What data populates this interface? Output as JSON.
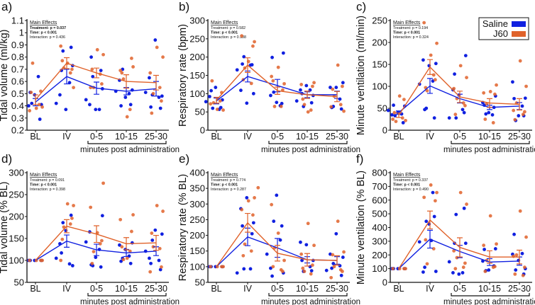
{
  "colors": {
    "Saline": "#1020e0",
    "J60": "#e0622a"
  },
  "legend": {
    "items": [
      "Saline",
      "J60"
    ],
    "placement": "top-right of panel c"
  },
  "chart_data": [
    {
      "panel": "a)",
      "type": "scatter+line",
      "ylabel": "Tidal volume (ml/kg)",
      "xlabel": "minutes post administration",
      "categories": [
        "BL",
        "IV",
        "0-5",
        "10-15",
        "25-30"
      ],
      "ylim": [
        0.2,
        1.1
      ],
      "yticks": [
        0.2,
        0.3,
        0.4,
        0.5,
        0.6,
        0.7,
        0.8,
        0.9,
        1,
        1.1
      ],
      "stats": {
        "title": "Main Effects",
        "lines": [
          {
            "text": "Treatment: p = 0.037",
            "bold": true
          },
          {
            "text": "Time: p < 0.001",
            "bold": true
          },
          {
            "text": "Interaction: p = 0.436",
            "bold": false
          }
        ]
      },
      "series": [
        {
          "name": "Saline",
          "mean": [
            0.43,
            0.64,
            0.545,
            0.52,
            0.54
          ],
          "sem": [
            0.03,
            0.06,
            0.05,
            0.03,
            0.06
          ],
          "points": [
            [
              0.49,
              0.4,
              0.41,
              0.51,
              0.29,
              0.42,
              0.64
            ],
            [
              0.37,
              0.49,
              0.73,
              0.69,
              0.88,
              0.85,
              0.59,
              0.42
            ],
            [
              0.37,
              0.41,
              0.54,
              0.8,
              0.69,
              0.64,
              0.37,
              0.45
            ],
            [
              0.47,
              0.61,
              0.53,
              0.4,
              0.41,
              0.7,
              0.5,
              0.52
            ],
            [
              0.94,
              0.63,
              0.48,
              0.39,
              0.38,
              0.49,
              0.47,
              0.51
            ]
          ]
        },
        {
          "name": "J60",
          "mean": [
            0.45,
            0.75,
            0.67,
            0.6,
            0.59
          ],
          "sem": [
            0.04,
            0.045,
            0.04,
            0.055,
            0.06
          ],
          "points": [
            [
              0.38,
              0.39,
              0.36,
              0.52,
              0.51,
              0.41,
              0.75
            ],
            [
              0.75,
              0.55,
              0.89,
              0.7,
              0.77,
              0.67,
              0.71
            ],
            [
              0.86,
              0.82,
              0.55,
              0.58,
              0.7,
              0.66,
              0.55
            ],
            [
              0.31,
              0.72,
              0.69,
              0.79,
              0.67,
              0.37,
              0.62
            ],
            [
              0.88,
              0.8,
              0.67,
              0.44,
              0.34,
              0.55,
              0.5
            ]
          ]
        }
      ]
    },
    {
      "panel": "b)",
      "type": "scatter+line",
      "ylabel": "Respiratory rate (bpm)",
      "xlabel": "minutes post administration",
      "categories": [
        "BL",
        "IV",
        "0-5",
        "10-15",
        "25-30"
      ],
      "ylim": [
        0,
        300
      ],
      "yticks": [
        0,
        50,
        100,
        150,
        200,
        250,
        300
      ],
      "stats": {
        "title": "Main Effects",
        "lines": [
          {
            "text": "Treatment: p = 0.582",
            "bold": false
          },
          {
            "text": "Time: p < 0.001",
            "bold": true
          },
          {
            "text": "Interaction: p = 0.188",
            "bold": false
          }
        ]
      },
      "series": [
        {
          "name": "Saline",
          "mean": [
            80,
            147,
            122,
            97,
            97
          ],
          "sem": [
            8,
            15,
            17,
            8,
            10
          ],
          "points": [
            [
              117,
              92,
              83,
              108,
              62,
              60,
              57,
              78
            ],
            [
              74,
              109,
              100,
              181,
              179,
              201,
              178,
              165
            ],
            [
              76,
              95,
              211,
              199,
              73,
              104,
              67
            ],
            [
              122,
              110,
              95,
              100,
              75,
              65,
              110,
              80
            ],
            [
              117,
              117,
              130,
              62,
              58,
              65,
              85
            ]
          ]
        },
        {
          "name": "J60",
          "mean": [
            82,
            178,
            108,
            97,
            92
          ],
          "sem": [
            8,
            20,
            10,
            10,
            14
          ],
          "points": [
            [
              57,
              55,
              72,
              103,
              135,
              80,
              75
            ],
            [
              188,
              242,
              258,
              230,
              138,
              128,
              170
            ],
            [
              172,
              127,
              147,
              110,
              135,
              65,
              65
            ],
            [
              50,
              130,
              125,
              120,
              85,
              55,
              70
            ],
            [
              178,
              52,
              64,
              120,
              112,
              70,
              93
            ]
          ]
        }
      ]
    },
    {
      "panel": "c)",
      "type": "scatter+line",
      "ylabel": "Minute ventilation (ml/min)",
      "xlabel": "minutes post administration",
      "categories": [
        "BL",
        "IV",
        "0-5",
        "10-15",
        "25-30"
      ],
      "ylim": [
        0,
        250
      ],
      "yticks": [
        0,
        50,
        100,
        150,
        200,
        250
      ],
      "stats": {
        "title": "Main Effects",
        "lines": [
          {
            "text": "Treatment: p = 0.194",
            "bold": false
          },
          {
            "text": "Time: p < 0.001",
            "bold": true
          },
          {
            "text": "Interaction: p = 0.324",
            "bold": false
          }
        ]
      },
      "series": [
        {
          "name": "Saline",
          "mean": [
            40,
            101,
            72,
            52,
            55
          ],
          "sem": [
            4,
            17,
            10,
            5,
            8
          ],
          "points": [
            [
              40,
              35,
              55,
              57,
              17,
              33,
              37,
              45
            ],
            [
              147,
              160,
              152,
              47,
              28,
              50,
              112,
              105
            ],
            [
              80,
              92,
              170,
              128,
              40,
              28,
              47,
              28
            ],
            [
              40,
              63,
              78,
              57,
              52,
              37,
              35
            ],
            [
              33,
              110,
              73,
              72,
              33,
              22,
              55
            ]
          ]
        },
        {
          "name": "J60",
          "mean": [
            34,
            144,
            76,
            62,
            59
          ],
          "sem": [
            5,
            17,
            13,
            10,
            13
          ],
          "points": [
            [
              78,
              22,
              25,
              70,
              40,
              28,
              20
            ],
            [
              171,
              198,
              245,
              115,
              97,
              126,
              90
            ],
            [
              147,
              120,
              95,
              56,
              36,
              62,
              72
            ],
            [
              88,
              103,
              85,
              82,
              25,
              17,
              60
            ],
            [
              158,
              100,
              45,
              42,
              24,
              36,
              62
            ]
          ]
        }
      ]
    },
    {
      "panel": "d)",
      "type": "scatter+line",
      "ylabel": "Tidal volume (% BL)",
      "xlabel": "minutes post administration",
      "categories": [
        "BL",
        "IV",
        "0-5",
        "10-15",
        "25-30"
      ],
      "ylim": [
        50,
        300
      ],
      "yticks": [
        50,
        100,
        150,
        200,
        250,
        300
      ],
      "stats": {
        "title": "Main Effects",
        "lines": [
          {
            "text": "Treatment: p = 0.091",
            "bold": false
          },
          {
            "text": "Time: p < 0.001",
            "bold": true
          },
          {
            "text": "Interaction: p = 0.398",
            "bold": false
          }
        ]
      },
      "series": [
        {
          "name": "Saline",
          "mean": [
            100,
            144,
            124,
            117,
            121
          ],
          "sem": [
            0,
            14,
            13,
            8,
            10
          ],
          "points": [
            [
              100,
              100,
              100,
              100
            ],
            [
              168,
              138,
              88,
              117,
              203,
              186,
              92,
              105
            ],
            [
              107,
              165,
              202,
              90,
              85,
              88,
              125,
              142
            ],
            [
              125,
              135,
              140,
              98,
              93,
              105,
              110
            ],
            [
              169,
              105,
              160,
              93,
              79,
              146,
              100,
              121
            ]
          ]
        },
        {
          "name": "J60",
          "mean": [
            100,
            178,
            160,
            138,
            140
          ],
          "sem": [
            0,
            15,
            19,
            14,
            17
          ],
          "points": [
            [
              100,
              100,
              100,
              100
            ],
            [
              229,
              225,
              100,
              196,
              148,
              183,
              176
            ],
            [
              163,
              276,
              221,
              145,
              93,
              138,
              120
            ],
            [
              105,
              204,
              193,
              166,
              131,
              121,
              102
            ],
            [
              225,
              212,
              74,
              85,
              162,
              127,
              131
            ]
          ]
        }
      ]
    },
    {
      "panel": "e)",
      "type": "scatter+line",
      "ylabel": "Respiratory rate (% BL)",
      "xlabel": "minutes post administration",
      "categories": [
        "BL",
        "IV",
        "0-5",
        "10-15",
        "25-30"
      ],
      "ylim": [
        50,
        400
      ],
      "yticks": [
        50,
        100,
        150,
        200,
        250,
        300,
        350,
        400
      ],
      "stats": {
        "title": "Main Effects",
        "lines": [
          {
            "text": "Treatment: p = 0.774",
            "bold": false
          },
          {
            "text": "Time: p < 0.001",
            "bold": true
          },
          {
            "text": "Interaction: p = 0.287",
            "bold": false
          }
        ]
      },
      "series": [
        {
          "name": "Saline",
          "mean": [
            100,
            195,
            160,
            122,
            120
          ],
          "sem": [
            0,
            28,
            30,
            10,
            12
          ],
          "points": [
            [
              100,
              100,
              100,
              100
            ],
            [
              320,
              285,
              240,
              230,
              205,
              93,
              93,
              80
            ],
            [
              328,
              95,
              80,
              70,
              230,
              245,
              185,
              140
            ],
            [
              170,
              178,
              120,
              120,
              87,
              85,
              100
            ],
            [
              205,
              140,
              130,
              95,
              72,
              110,
              103,
              88
            ]
          ]
        },
        {
          "name": "J60",
          "mean": [
            100,
            240,
            143,
            122,
            120
          ],
          "sem": [
            0,
            30,
            25,
            20,
            15
          ],
          "points": [
            [
              100,
              100,
              100,
              100
            ],
            [
              310,
              320,
              282,
              265,
              135,
              150,
              172,
              352
            ],
            [
              207,
              120,
              298,
              85,
              100,
              90,
              160
            ],
            [
              238,
              168,
              140,
              105,
              95,
              77,
              85
            ],
            [
              245,
              147,
              65,
              85,
              138,
              90,
              100
            ]
          ]
        }
      ]
    },
    {
      "panel": "f)",
      "type": "scatter+line",
      "ylabel": "Minute ventilation (% BL)",
      "xlabel": "minutes post administration",
      "categories": [
        "BL",
        "IV",
        "0-5",
        "10-15",
        "25-30"
      ],
      "ylim": [
        0,
        800
      ],
      "yticks": [
        0,
        100,
        200,
        300,
        400,
        500,
        600,
        700,
        800
      ],
      "stats": {
        "title": "Main Effects",
        "lines": [
          {
            "text": "Treatment: p = 0.337",
            "bold": false
          },
          {
            "text": "Time: p < 0.001",
            "bold": true
          },
          {
            "text": "Interaction: p = 0.490",
            "bold": false
          }
        ]
      },
      "series": [
        {
          "name": "Saline",
          "mean": [
            100,
            315,
            225,
            148,
            155
          ],
          "sem": [
            0,
            65,
            45,
            25,
            30
          ],
          "points": [
            [
              100,
              100,
              100,
              100
            ],
            [
              425,
              75,
              80,
              110,
              480,
              445,
              655,
              295,
              305
            ],
            [
              60,
              70,
              285,
              285,
              540,
              495,
              70,
              150
            ],
            [
              90,
              155,
              245,
              240,
              120,
              85
            ],
            [
              160,
              205,
              100,
              350,
              60,
              90,
              210
            ]
          ]
        },
        {
          "name": "J60",
          "mean": [
            100,
            455,
            255,
            185,
            185
          ],
          "sem": [
            0,
            65,
            70,
            45,
            50
          ],
          "points": [
            [
              100,
              100,
              100,
              100
            ],
            [
              710,
              655,
              620,
              595,
              310,
              245,
              135
            ],
            [
              655,
              570,
              230,
              140,
              100,
              110,
              180
            ],
            [
              485,
              280,
              270,
              115,
              80,
              110,
              160
            ],
            [
              520,
              330,
              190,
              110,
              60,
              50,
              200
            ]
          ]
        }
      ]
    }
  ]
}
